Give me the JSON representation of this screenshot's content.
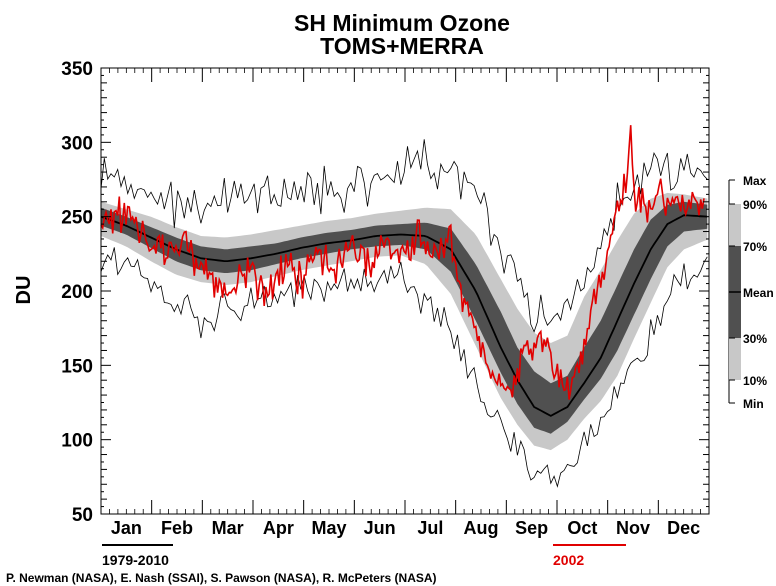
{
  "chart_data": {
    "type": "area",
    "title": "SH Minimum Ozone",
    "subtitle": "TOMS+MERRA",
    "ylabel": "DU",
    "xlabel": "",
    "ylim": [
      50,
      350
    ],
    "yticks": [
      50,
      100,
      150,
      200,
      250,
      300,
      350
    ],
    "xlim": [
      0,
      365
    ],
    "months": [
      "Jan",
      "Feb",
      "Mar",
      "Apr",
      "May",
      "Jun",
      "Jul",
      "Aug",
      "Sep",
      "Oct",
      "Nov",
      "Dec"
    ],
    "climatology_label": "1979-2010",
    "highlight_year_label": "2002",
    "credit": "P. Newman (NASA), E. Nash (SSAI), S. Pawson (NASA), R. McPeters (NASA)",
    "legend": {
      "items": [
        "Max",
        "90%",
        "70%",
        "Mean",
        "30%",
        "10%",
        "Min"
      ],
      "placement": "right"
    },
    "colors": {
      "mean": "#000000",
      "band_10_90": "#c8c8c8",
      "band_30_70": "#505050",
      "minmax": "#000000",
      "highlight": "#e00000",
      "climatology_underline": "#000000",
      "highlight_underline": "#e00000"
    },
    "day_anchors": [
      0,
      15,
      30,
      45,
      60,
      75,
      90,
      105,
      120,
      135,
      150,
      165,
      180,
      195,
      210,
      225,
      240,
      250,
      260,
      270,
      280,
      290,
      300,
      310,
      320,
      330,
      340,
      350,
      365
    ],
    "mean": [
      250,
      244,
      236,
      228,
      222,
      220,
      222,
      225,
      229,
      232,
      234,
      237,
      238,
      237,
      228,
      200,
      162,
      140,
      122,
      116,
      122,
      138,
      155,
      180,
      205,
      228,
      245,
      251,
      250
    ],
    "p30": [
      244,
      238,
      229,
      220,
      214,
      212,
      214,
      218,
      222,
      225,
      228,
      230,
      231,
      228,
      213,
      180,
      145,
      124,
      108,
      104,
      112,
      127,
      141,
      160,
      184,
      208,
      230,
      240,
      242
    ],
    "p70": [
      256,
      250,
      243,
      236,
      230,
      228,
      230,
      232,
      236,
      239,
      241,
      244,
      245,
      246,
      242,
      218,
      186,
      162,
      146,
      138,
      143,
      162,
      180,
      204,
      228,
      248,
      258,
      260,
      258
    ],
    "p10": [
      237,
      230,
      220,
      211,
      206,
      204,
      206,
      210,
      214,
      217,
      220,
      223,
      224,
      218,
      198,
      163,
      128,
      110,
      96,
      93,
      100,
      114,
      126,
      143,
      168,
      192,
      216,
      228,
      235
    ],
    "p90": [
      260,
      255,
      250,
      243,
      237,
      236,
      238,
      241,
      244,
      247,
      249,
      252,
      254,
      256,
      255,
      238,
      208,
      188,
      172,
      165,
      170,
      196,
      214,
      234,
      252,
      262,
      266,
      265,
      262
    ],
    "min": [
      222,
      215,
      203,
      193,
      184,
      186,
      190,
      193,
      197,
      200,
      205,
      208,
      208,
      196,
      170,
      140,
      110,
      93,
      80,
      74,
      84,
      98,
      110,
      128,
      150,
      170,
      195,
      210,
      220
    ],
    "max": [
      278,
      268,
      262,
      258,
      252,
      260,
      262,
      262,
      264,
      268,
      268,
      275,
      278,
      290,
      280,
      260,
      228,
      205,
      188,
      182,
      190,
      212,
      232,
      258,
      275,
      283,
      283,
      280,
      278
    ],
    "highlight_anchors": [
      0,
      10,
      20,
      30,
      40,
      50,
      60,
      70,
      80,
      90,
      100,
      110,
      120,
      130,
      140,
      150,
      160,
      170,
      180,
      190,
      200,
      210,
      215,
      220,
      225,
      230,
      235,
      240,
      245,
      250,
      255,
      260,
      265,
      270,
      275,
      280,
      285,
      290,
      295,
      300,
      305,
      310,
      315,
      318,
      320,
      325,
      330,
      335,
      340,
      345,
      350,
      355,
      360
    ],
    "highlight_values": [
      248,
      252,
      244,
      236,
      226,
      232,
      216,
      204,
      208,
      212,
      200,
      218,
      206,
      228,
      212,
      230,
      218,
      230,
      222,
      240,
      225,
      236,
      206,
      188,
      176,
      156,
      142,
      136,
      132,
      142,
      168,
      160,
      162,
      158,
      140,
      136,
      146,
      162,
      186,
      208,
      228,
      254,
      272,
      305,
      264,
      262,
      254,
      266,
      256,
      260,
      254,
      262,
      258
    ]
  }
}
